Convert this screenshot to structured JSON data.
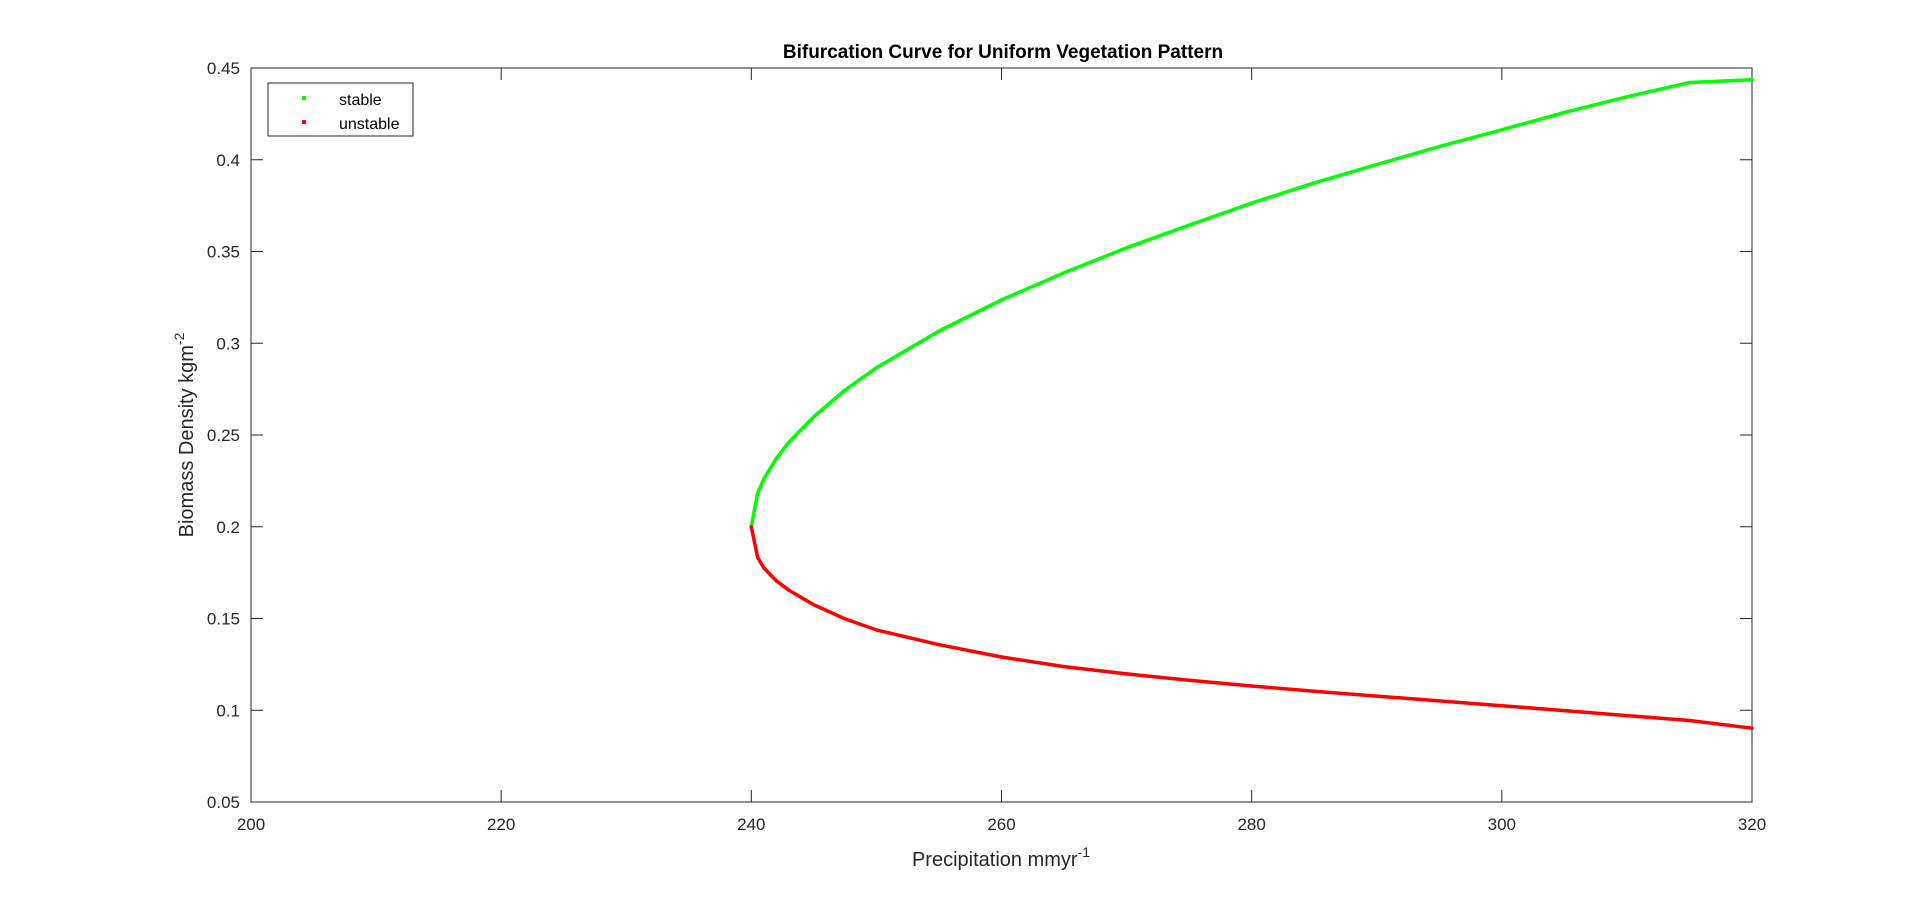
{
  "colors": {
    "stable": "#00ff00",
    "unstable": "#ff0000",
    "axes": "#262626",
    "background": "#ffffff"
  },
  "chart_data": {
    "type": "line",
    "title": "Bifurcation Curve for Uniform Vegetation Pattern",
    "xlabel_text": "Precipitation mmyr",
    "xlabel_sup": "-1",
    "ylabel_text": "Biomass Density kgm",
    "ylabel_sup": "-2",
    "xlim": [
      200,
      320
    ],
    "ylim": [
      0.05,
      0.45
    ],
    "xticks": [
      200,
      220,
      240,
      260,
      280,
      300,
      320
    ],
    "xtick_labels": [
      "200",
      "220",
      "240",
      "260",
      "280",
      "300",
      "320"
    ],
    "yticks": [
      0.05,
      0.1,
      0.15,
      0.2,
      0.25,
      0.3,
      0.35,
      0.4,
      0.45
    ],
    "ytick_labels": [
      "0.05",
      "0.1",
      "0.15",
      "0.2",
      "0.25",
      "0.3",
      "0.35",
      "0.4",
      "0.45"
    ],
    "grid": false,
    "box": true,
    "legend_position": "top-left",
    "series": [
      {
        "name": "stable",
        "color": "#00ff00",
        "marker": "point",
        "x": [
          240,
          240.5,
          241,
          242,
          243,
          245,
          247.5,
          250,
          255,
          260,
          265,
          270,
          275,
          280,
          285,
          290,
          295,
          300,
          305,
          310,
          315,
          320
        ],
        "y": [
          0.2,
          0.2183,
          0.226,
          0.2373,
          0.2461,
          0.26,
          0.2745,
          0.2866,
          0.3067,
          0.3236,
          0.3384,
          0.352,
          0.3644,
          0.3764,
          0.3874,
          0.3974,
          0.4072,
          0.4163,
          0.4258,
          0.4343,
          0.4421,
          0.4436
        ]
      },
      {
        "name": "unstable",
        "color": "#ff0000",
        "marker": "point",
        "x": [
          240,
          240.5,
          241,
          242,
          243,
          245,
          247.5,
          250,
          255,
          260,
          265,
          270,
          275,
          280,
          285,
          290,
          295,
          300,
          305,
          310,
          315,
          320
        ],
        "y": [
          0.2,
          0.1833,
          0.1776,
          0.1705,
          0.1654,
          0.1574,
          0.1498,
          0.1438,
          0.1357,
          0.129,
          0.1238,
          0.1198,
          0.1163,
          0.1132,
          0.1104,
          0.1077,
          0.1051,
          0.1025,
          0.0998,
          0.0971,
          0.0944,
          0.0902
        ]
      }
    ]
  }
}
